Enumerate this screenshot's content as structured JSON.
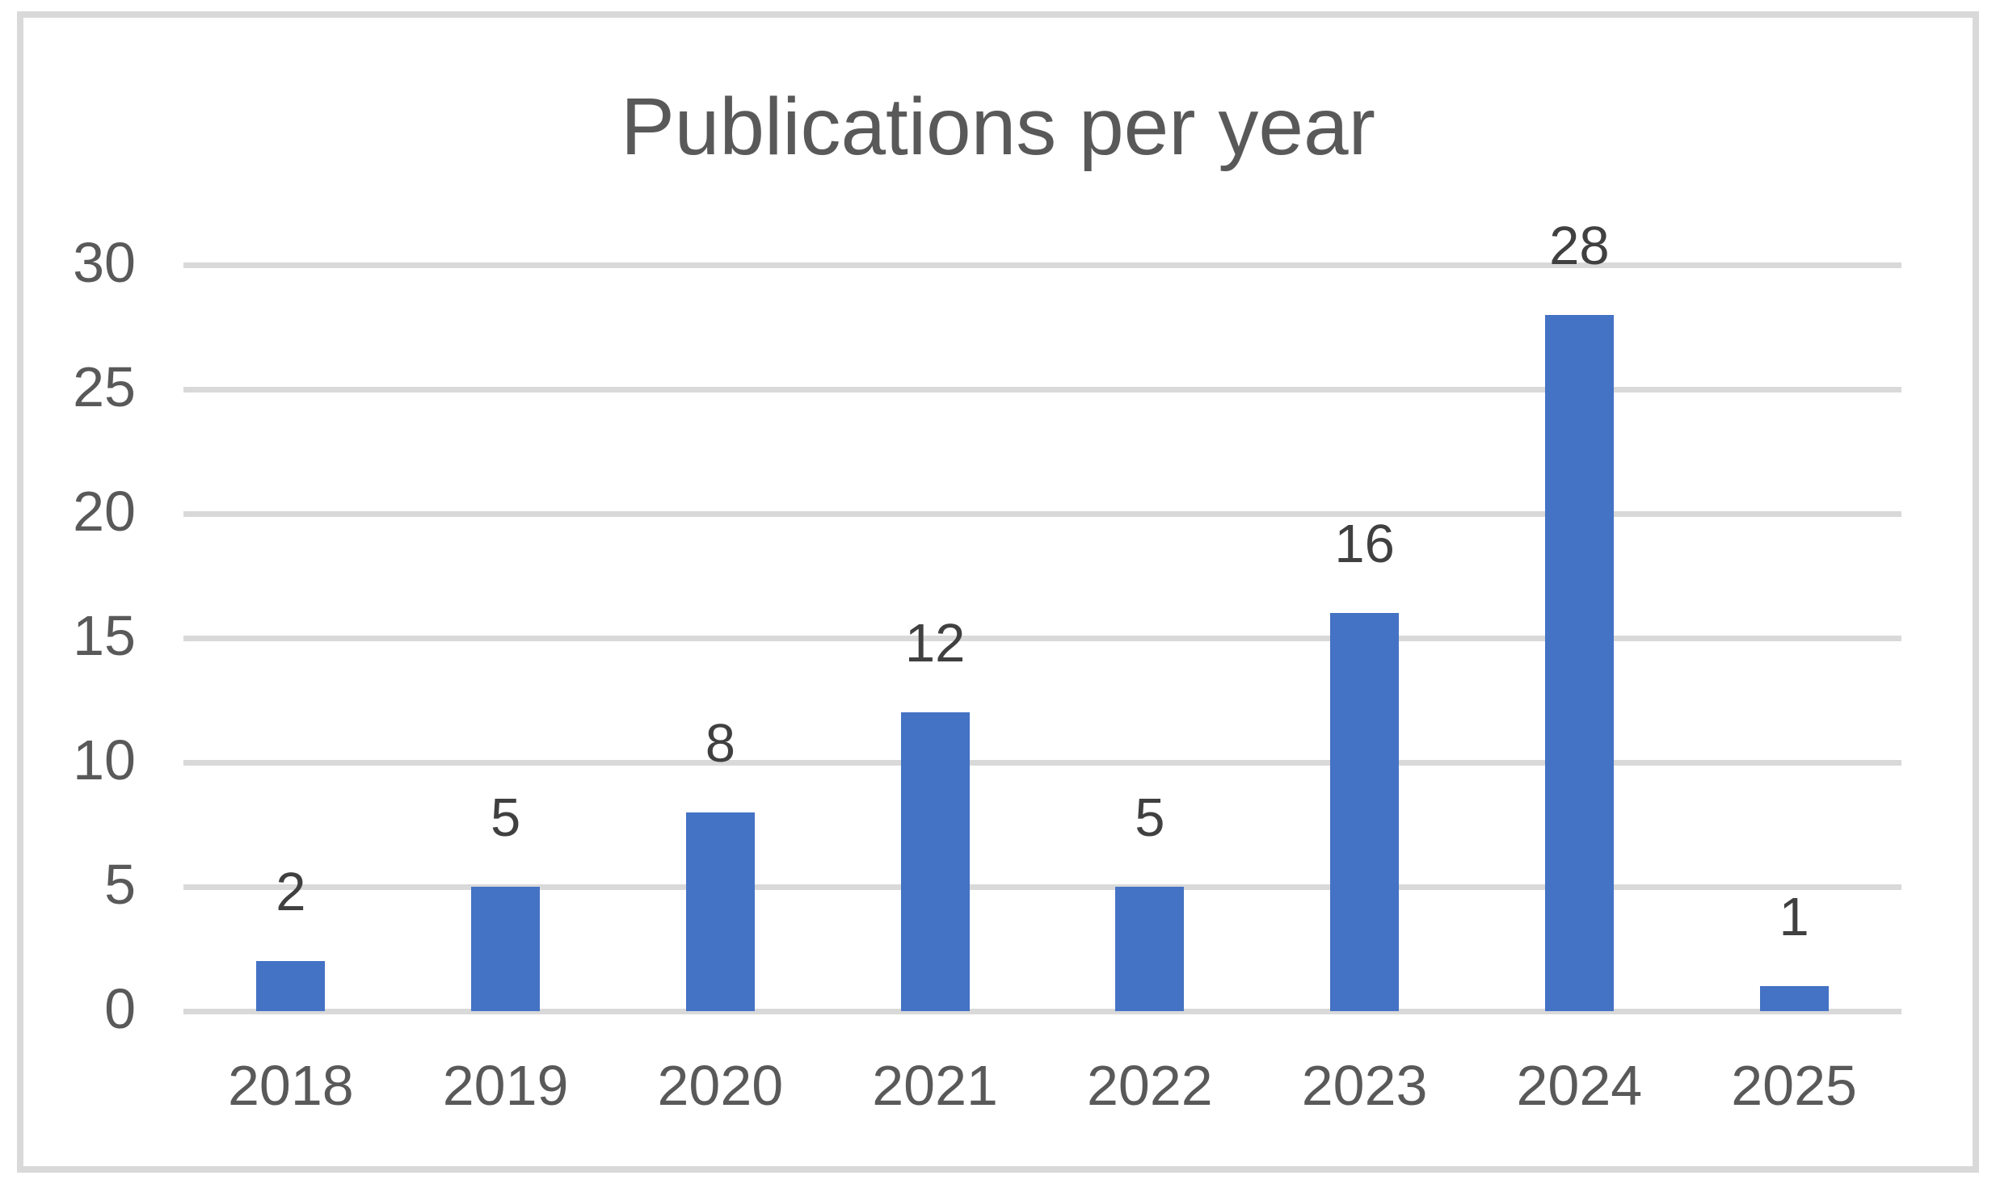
{
  "chart_data": {
    "type": "bar",
    "title": "Publications per year",
    "categories": [
      "2018",
      "2019",
      "2020",
      "2021",
      "2022",
      "2023",
      "2024",
      "2025"
    ],
    "values": [
      2,
      5,
      8,
      12,
      5,
      16,
      28,
      1
    ],
    "data_labels_shown": true,
    "y_ticks": [
      0,
      5,
      10,
      15,
      20,
      25,
      30
    ],
    "ylim": [
      0,
      30
    ],
    "xlabel": "",
    "ylabel": "",
    "legend": "none",
    "grid": "horizontal",
    "colors": {
      "bar": "#4472C4",
      "gridline": "#D9D9D9",
      "axis_text": "#595959",
      "data_label_text": "#404040",
      "title_text": "#595959",
      "frame_border": "#D9D9D9",
      "background": "#FFFFFF"
    }
  }
}
